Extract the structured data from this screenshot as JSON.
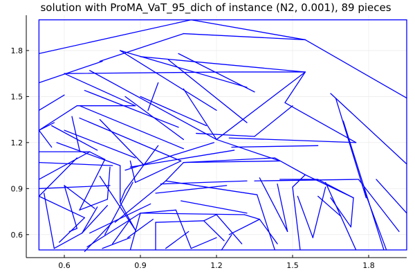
{
  "chart_data": {
    "type": "line",
    "title": "solution with ProMA_VaT_95_dich of instance (N2, 0.001), 89 pieces",
    "xlabel": "",
    "ylabel": "",
    "xlim": [
      0.45,
      1.95
    ],
    "ylim": [
      0.45,
      2.03
    ],
    "xticks": [
      0.6,
      0.9,
      1.2,
      1.5,
      1.8
    ],
    "yticks": [
      0.6,
      0.9,
      1.2,
      1.5,
      1.8
    ],
    "xtick_labels": [
      "0.6",
      "0.9",
      "1.2",
      "1.5",
      "1.8"
    ],
    "ytick_labels": [
      "0.6",
      "0.9",
      "1.2",
      "1.5",
      "1.8"
    ],
    "grid": true,
    "legend": "none",
    "line_color": "#0000ff",
    "domain_rect": [
      0.5,
      0.5,
      1.95,
      2.0
    ],
    "segments": [
      [
        0.5,
        1.78,
        1.1,
        2.0
      ],
      [
        0.5,
        1.59,
        0.75,
        1.73
      ],
      [
        1.1,
        2.0,
        1.55,
        1.87
      ],
      [
        0.74,
        1.73,
        1.07,
        1.91
      ],
      [
        1.07,
        1.91,
        1.55,
        1.87
      ],
      [
        1.55,
        1.87,
        1.95,
        1.49
      ],
      [
        0.5,
        1.41,
        0.6,
        1.51
      ],
      [
        0.6,
        1.65,
        1.25,
        1.66
      ],
      [
        1.25,
        1.66,
        1.55,
        1.66
      ],
      [
        0.5,
        1.28,
        0.65,
        1.44
      ],
      [
        0.65,
        1.44,
        0.88,
        1.44
      ],
      [
        0.6,
        1.65,
        0.88,
        1.44
      ],
      [
        0.82,
        1.8,
        1.32,
        1.56
      ],
      [
        0.82,
        1.8,
        1.2,
        1.41
      ],
      [
        0.9,
        1.76,
        1.55,
        1.66
      ],
      [
        0.97,
        1.59,
        0.93,
        1.41
      ],
      [
        1.01,
        1.74,
        1.32,
        1.33
      ],
      [
        1.05,
        1.78,
        1.35,
        1.53
      ],
      [
        0.68,
        1.54,
        1.05,
        1.3
      ],
      [
        0.66,
        1.36,
        1.06,
        1.08
      ],
      [
        0.74,
        1.35,
        0.91,
        1.06
      ],
      [
        0.66,
        1.44,
        1.07,
        1.16
      ],
      [
        0.9,
        1.5,
        1.16,
        1.31
      ],
      [
        0.84,
        1.5,
        1.07,
        1.22
      ],
      [
        0.7,
        1.67,
        1.2,
        1.22
      ],
      [
        1.07,
        1.55,
        1.2,
        1.22
      ],
      [
        1.55,
        1.66,
        1.2,
        1.22
      ],
      [
        0.5,
        1.28,
        0.55,
        1.17
      ],
      [
        0.5,
        1.28,
        0.56,
        1.33
      ],
      [
        0.55,
        1.31,
        0.73,
        1.15
      ],
      [
        0.63,
        1.37,
        0.66,
        1.15
      ],
      [
        0.6,
        1.28,
        0.88,
        1.1
      ],
      [
        0.57,
        1.2,
        0.82,
        1.05
      ],
      [
        0.5,
        1.14,
        0.7,
        1.14
      ],
      [
        0.5,
        1.07,
        0.79,
        1.05
      ],
      [
        0.7,
        1.14,
        0.76,
        1.09
      ],
      [
        0.76,
        1.09,
        0.66,
        0.76
      ],
      [
        0.66,
        0.76,
        0.77,
        0.83
      ],
      [
        0.77,
        0.83,
        0.78,
        1.04
      ],
      [
        0.5,
        0.96,
        0.7,
        1.14
      ],
      [
        0.5,
        0.9,
        0.78,
        0.92
      ],
      [
        0.5,
        0.85,
        0.65,
        1.1
      ],
      [
        0.5,
        0.85,
        0.68,
        0.71
      ],
      [
        0.52,
        0.87,
        0.56,
        0.51
      ],
      [
        0.56,
        0.51,
        0.67,
        0.61
      ],
      [
        0.6,
        0.92,
        0.65,
        0.64
      ],
      [
        0.6,
        0.92,
        0.72,
        0.77
      ],
      [
        0.67,
        0.61,
        0.73,
        0.78
      ],
      [
        0.68,
        0.71,
        0.58,
        0.55
      ],
      [
        0.65,
        0.64,
        0.62,
        0.62
      ],
      [
        0.67,
        0.61,
        0.77,
        0.79
      ],
      [
        0.74,
        0.98,
        0.88,
        0.63
      ],
      [
        0.82,
        1.05,
        0.82,
        0.81
      ],
      [
        0.82,
        0.81,
        0.88,
        0.63
      ],
      [
        0.68,
        0.49,
        0.79,
        0.68
      ],
      [
        0.76,
        0.6,
        0.87,
        0.94
      ],
      [
        0.7,
        0.61,
        0.94,
        0.8
      ],
      [
        0.8,
        0.68,
        1.0,
        0.95
      ],
      [
        0.84,
        0.89,
        0.97,
        1.18
      ],
      [
        0.88,
        0.94,
        1.06,
        1.08
      ],
      [
        0.86,
        1.08,
        0.88,
        0.94
      ],
      [
        0.84,
        0.89,
        0.82,
        0.81
      ],
      [
        0.69,
        0.52,
        0.9,
        0.74
      ],
      [
        0.75,
        0.51,
        0.86,
        0.58
      ],
      [
        0.79,
        0.54,
        0.86,
        0.7
      ],
      [
        0.85,
        0.58,
        0.95,
        0.7
      ],
      [
        0.86,
        0.5,
        0.9,
        0.74
      ],
      [
        0.9,
        0.74,
        1.04,
        0.76
      ],
      [
        0.96,
        0.5,
        0.96,
        0.68
      ],
      [
        0.96,
        0.68,
        1.15,
        0.69
      ],
      [
        1.04,
        0.76,
        1.1,
        0.51
      ],
      [
        1.0,
        0.51,
        1.09,
        0.62
      ],
      [
        1.1,
        0.51,
        1.2,
        0.58
      ],
      [
        1.15,
        0.69,
        1.23,
        0.56
      ],
      [
        1.15,
        0.69,
        1.2,
        0.73
      ],
      [
        1.2,
        0.73,
        1.3,
        0.54
      ],
      [
        1.25,
        0.6,
        1.37,
        0.7
      ],
      [
        1.22,
        0.5,
        1.26,
        0.6
      ],
      [
        0.9,
        0.74,
        1.31,
        0.73
      ],
      [
        1.31,
        0.73,
        1.37,
        0.7
      ],
      [
        1.37,
        0.7,
        1.44,
        0.54
      ],
      [
        1.06,
        0.82,
        1.32,
        0.74
      ],
      [
        0.96,
        0.87,
        1.24,
        0.92
      ],
      [
        0.98,
        0.93,
        1.32,
        0.95
      ],
      [
        1.0,
        0.95,
        1.36,
        0.86
      ],
      [
        0.84,
        1.02,
        1.19,
        1.2
      ],
      [
        0.86,
        1.04,
        1.27,
        1.15
      ],
      [
        1.0,
        0.95,
        1.07,
        1.07
      ],
      [
        1.07,
        1.07,
        1.45,
        1.08
      ],
      [
        1.07,
        1.07,
        1.43,
        1.1
      ],
      [
        1.2,
        1.22,
        1.45,
        1.08
      ],
      [
        1.12,
        1.26,
        1.35,
        1.24
      ],
      [
        1.26,
        1.17,
        1.6,
        1.18
      ],
      [
        1.25,
        1.23,
        1.75,
        1.2
      ],
      [
        1.35,
        1.24,
        1.5,
        1.44
      ],
      [
        1.55,
        1.66,
        1.47,
        1.46
      ],
      [
        1.47,
        1.46,
        1.75,
        1.2
      ],
      [
        1.43,
        1.1,
        1.55,
        0.99
      ],
      [
        1.55,
        0.99,
        1.74,
        0.84
      ],
      [
        1.45,
        0.96,
        1.6,
        0.96
      ],
      [
        1.6,
        0.96,
        1.74,
        0.84
      ],
      [
        1.35,
        0.95,
        1.76,
        0.96
      ],
      [
        1.76,
        0.96,
        1.92,
        0.62
      ],
      [
        1.65,
        1.52,
        1.95,
        1.06
      ],
      [
        1.67,
        1.49,
        1.79,
        0.84
      ],
      [
        1.7,
        1.34,
        1.86,
        0.5
      ],
      [
        1.36,
        0.86,
        1.43,
        0.5
      ],
      [
        1.37,
        0.97,
        1.48,
        0.62
      ],
      [
        1.44,
        0.93,
        1.48,
        0.62
      ],
      [
        1.5,
        0.91,
        1.53,
        0.5
      ],
      [
        1.52,
        0.85,
        1.58,
        0.58
      ],
      [
        1.58,
        0.58,
        1.63,
        0.91
      ],
      [
        1.6,
        0.85,
        1.69,
        0.72
      ],
      [
        1.65,
        0.84,
        1.73,
        0.65
      ],
      [
        1.73,
        0.65,
        1.74,
        0.84
      ],
      [
        1.63,
        0.94,
        1.75,
        0.5
      ],
      [
        1.5,
        0.91,
        1.55,
        0.99
      ],
      [
        1.78,
        0.9,
        1.87,
        0.5
      ],
      [
        1.83,
        0.96,
        1.95,
        0.74
      ]
    ]
  }
}
